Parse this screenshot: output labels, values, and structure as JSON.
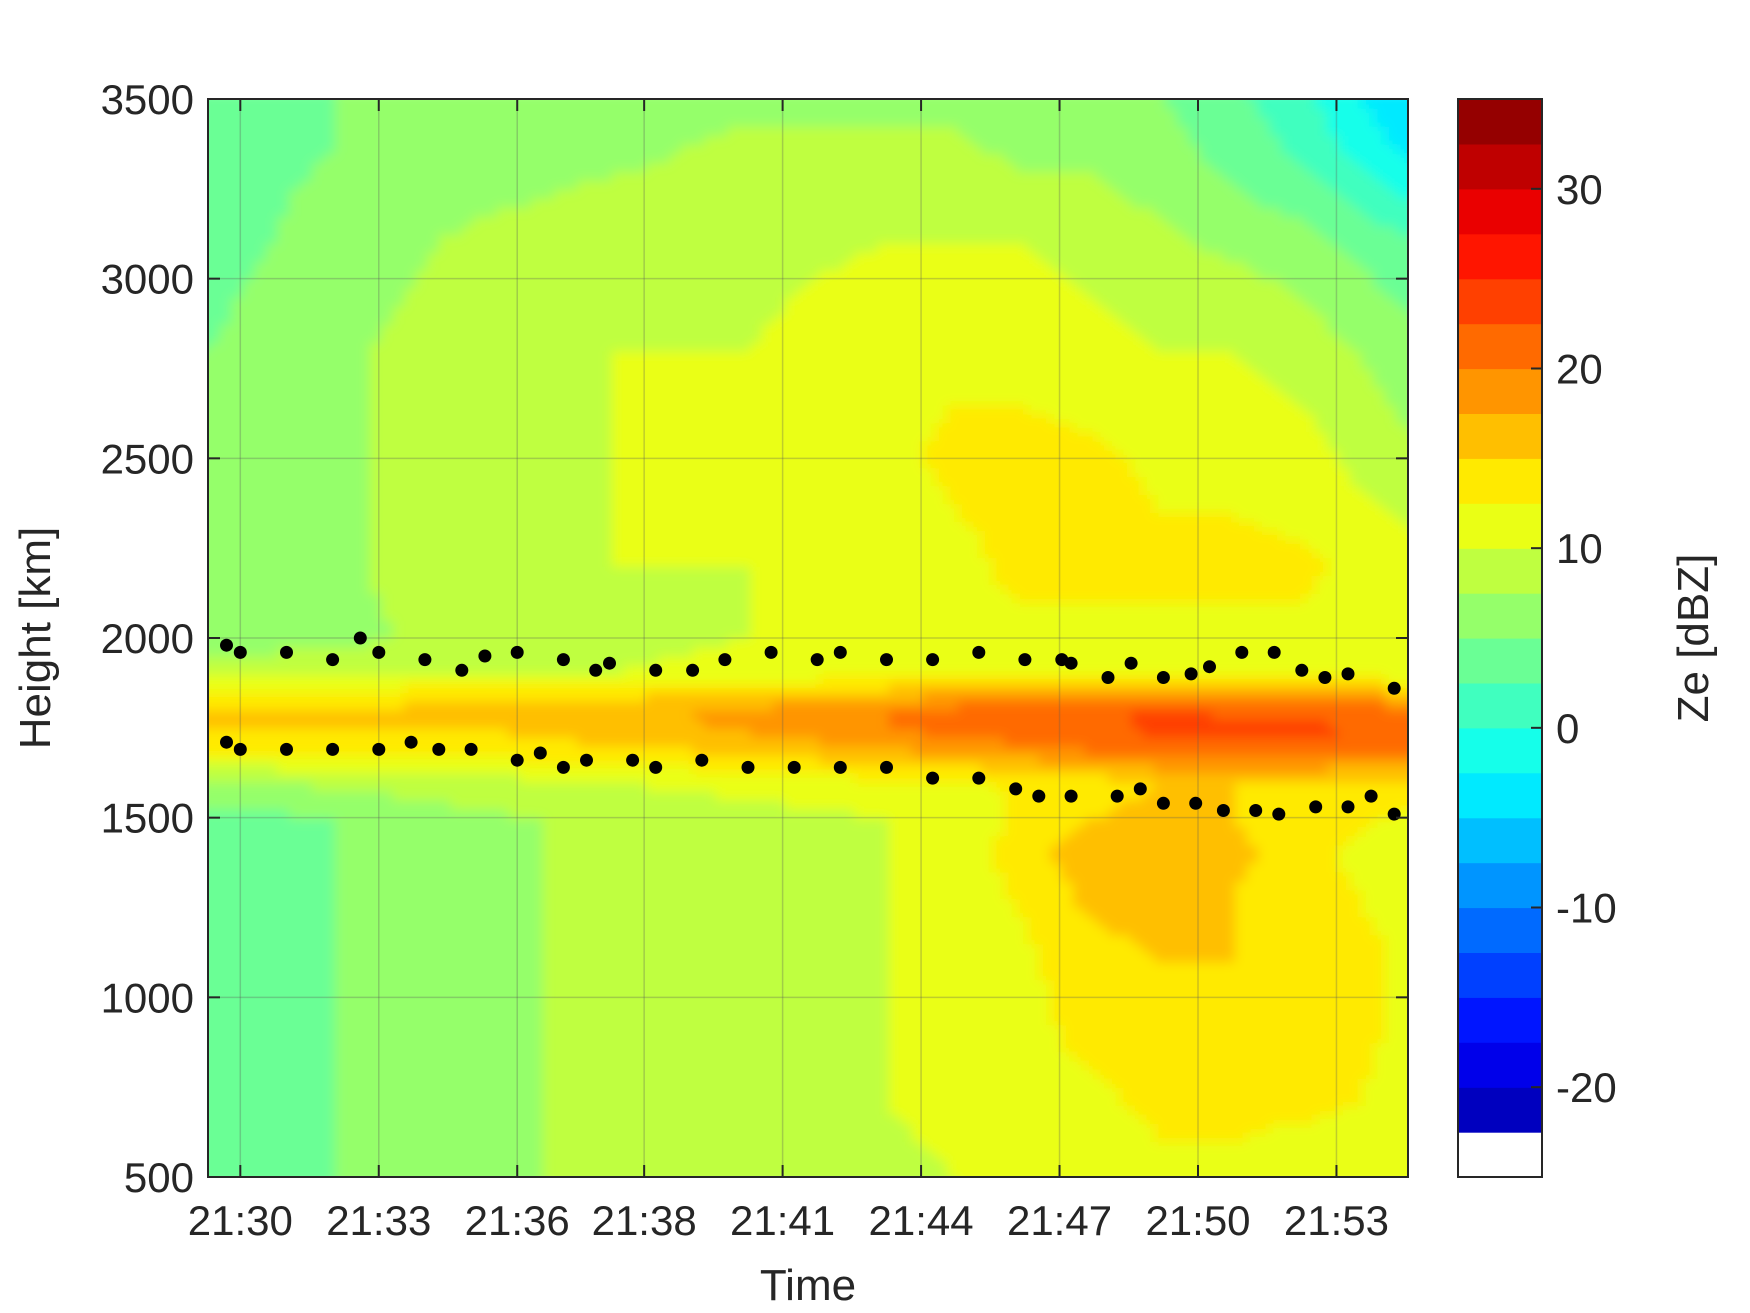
{
  "chart_data": {
    "type": "heatmap",
    "title": "",
    "xlabel": "Time",
    "ylabel": "Height [km]",
    "x_tick_labels": [
      "21:30",
      "21:33",
      "21:36",
      "21:38",
      "21:41",
      "21:44",
      "21:47",
      "21:50",
      "21:53"
    ],
    "x_tick_values_min": [
      0,
      3,
      6,
      8.75,
      11.75,
      14.75,
      17.75,
      20.75,
      23.75
    ],
    "xlim_min": [
      -0.7,
      25.3
    ],
    "ylim": [
      500,
      3500
    ],
    "y_ticks": [
      500,
      1000,
      1500,
      2000,
      2500,
      3000,
      3500
    ],
    "grid": true,
    "colorbar": {
      "label": "Ze [dBZ]",
      "range": [
        -25,
        35
      ],
      "ticks": [
        -20,
        -10,
        0,
        10,
        20,
        30
      ],
      "colormap": "jet",
      "nan_color": "#ffffff"
    },
    "field_dbz_rows": {
      "heights": [
        500,
        700,
        900,
        1100,
        1300,
        1400,
        1500,
        1600,
        1700,
        1750,
        1800,
        1850,
        1900,
        2000,
        2200,
        2500,
        2800,
        3100,
        3350,
        3500
      ],
      "times_min": [
        -0.7,
        2,
        5,
        8,
        11,
        14,
        15.5,
        17,
        18.5,
        20,
        21.5,
        23,
        25.3
      ],
      "values": [
        [
          4,
          5,
          7,
          8,
          9,
          9,
          10,
          11,
          11,
          12,
          12,
          11,
          11
        ],
        [
          4,
          5,
          7,
          8,
          9,
          10,
          11,
          12,
          12,
          13,
          13,
          13,
          12
        ],
        [
          4,
          5,
          7,
          8,
          9,
          10,
          11,
          12,
          13,
          14,
          14,
          14,
          12
        ],
        [
          3,
          5,
          7,
          8,
          9,
          10,
          11,
          12,
          14,
          15,
          15,
          15,
          12
        ],
        [
          3,
          5,
          7,
          8,
          9,
          10,
          11,
          13,
          16,
          16,
          15,
          14,
          11
        ],
        [
          3,
          5,
          7,
          8,
          9,
          10,
          11,
          14,
          17,
          17,
          16,
          13,
          11
        ],
        [
          4,
          5,
          7,
          8,
          9,
          10,
          11,
          13,
          15,
          16,
          15,
          14,
          12
        ],
        [
          7,
          8,
          9,
          10,
          11,
          12,
          12,
          13,
          14,
          15,
          15,
          15,
          14
        ],
        [
          14,
          14,
          14,
          15,
          16,
          18,
          19,
          20,
          21,
          22,
          22,
          22,
          22
        ],
        [
          15,
          15,
          15,
          16,
          18,
          20,
          21,
          21,
          22,
          23,
          23,
          23,
          22
        ],
        [
          15,
          15,
          16,
          17,
          18,
          20,
          21,
          21,
          22,
          23,
          22,
          22,
          21
        ],
        [
          13,
          13,
          14,
          14,
          15,
          16,
          17,
          17,
          18,
          18,
          18,
          17,
          16
        ],
        [
          9,
          9,
          10,
          10,
          11,
          12,
          12,
          12,
          12,
          12,
          12,
          12,
          11
        ],
        [
          6,
          7,
          8,
          9,
          10,
          11,
          12,
          12,
          12,
          12,
          12,
          12,
          11
        ],
        [
          5,
          7,
          9,
          10,
          10,
          11,
          12,
          13,
          13,
          13,
          13,
          13,
          11
        ],
        [
          5,
          7,
          9,
          10,
          10,
          12,
          13,
          13,
          13,
          12,
          12,
          11,
          8
        ],
        [
          5,
          7,
          9,
          10,
          10,
          12,
          12,
          12,
          11,
          10,
          10,
          9,
          6
        ],
        [
          4,
          6,
          8,
          9,
          9,
          10,
          10,
          10,
          9,
          8,
          7,
          6,
          3
        ],
        [
          4,
          5,
          6,
          7,
          8,
          8,
          8,
          7,
          7,
          6,
          4,
          2,
          -3
        ],
        [
          4,
          5,
          6,
          7,
          7,
          7,
          7,
          6,
          6,
          5,
          3,
          1,
          -5
        ]
      ]
    },
    "series": [
      {
        "marker": "black dots",
        "times_min": [
          -0.3,
          0,
          1,
          2,
          2.6,
          3,
          4,
          4.8,
          5.3,
          6,
          7,
          7.7,
          8,
          9,
          9.8,
          10.5,
          11.5,
          12.5,
          13,
          14,
          15,
          16,
          17,
          17.8,
          18,
          18.8,
          19.3,
          20,
          20.6,
          21,
          21.7,
          22.4,
          23,
          23.5,
          24,
          25
        ],
        "heights": [
          1980,
          1960,
          1960,
          1940,
          2000,
          1960,
          1940,
          1910,
          1950,
          1960,
          1940,
          1910,
          1930,
          1910,
          1910,
          1940,
          1960,
          1940,
          1960,
          1940,
          1940,
          1960,
          1940,
          1940,
          1930,
          1890,
          1930,
          1890,
          1900,
          1920,
          1960,
          1960,
          1910,
          1890,
          1900,
          1860
        ]
      },
      {
        "marker": "black dots",
        "times_min": [
          -0.3,
          0,
          1,
          2,
          3,
          3.7,
          4.3,
          5,
          6,
          6.5,
          7,
          7.5,
          8.5,
          9,
          10,
          11,
          12,
          13,
          14,
          15,
          16,
          16.8,
          17.3,
          18,
          19,
          19.5,
          20,
          20.7,
          21.3,
          22,
          22.5,
          23.3,
          24,
          24.5,
          25
        ],
        "heights": [
          1710,
          1690,
          1690,
          1690,
          1690,
          1710,
          1690,
          1690,
          1660,
          1680,
          1640,
          1660,
          1660,
          1640,
          1660,
          1640,
          1640,
          1640,
          1640,
          1610,
          1610,
          1580,
          1560,
          1560,
          1560,
          1580,
          1540,
          1540,
          1520,
          1520,
          1510,
          1530,
          1530,
          1560,
          1510
        ]
      }
    ]
  }
}
